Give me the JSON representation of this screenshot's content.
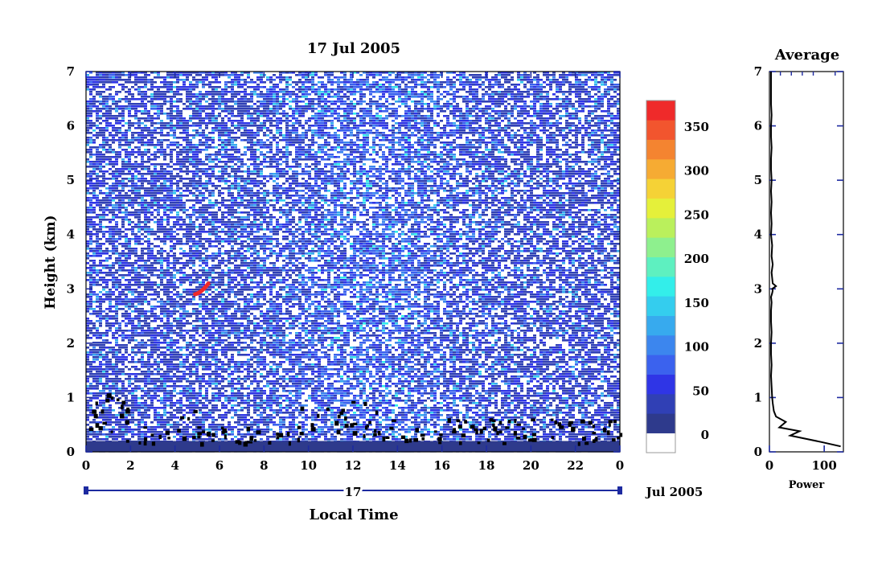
{
  "chart_data": [
    {
      "type": "heatmap",
      "title": "17 Jul 2005",
      "xlabel": "Local Time",
      "ylabel": "Height (km)",
      "x_ticks": [
        "0",
        "2",
        "4",
        "6",
        "8",
        "10",
        "12",
        "14",
        "16",
        "18",
        "20",
        "22",
        "0"
      ],
      "y_ticks": [
        "0",
        "1",
        "2",
        "3",
        "4",
        "5",
        "6",
        "7"
      ],
      "xlim": [
        0,
        24
      ],
      "ylim": [
        0,
        7
      ],
      "date_bar_label": "17",
      "date_suffix": "Jul 2005",
      "colorbar": {
        "ticks": [
          "0",
          "50",
          "100",
          "150",
          "200",
          "250",
          "300",
          "350"
        ],
        "range": [
          -20,
          380
        ],
        "colors": [
          "#ffffff",
          "#2e3a8c",
          "#3040b5",
          "#2f35e6",
          "#3b62ee",
          "#3c86ee",
          "#37aaee",
          "#34cdee",
          "#33eeea",
          "#5ef0c0",
          "#8ef08e",
          "#baf05c",
          "#e5f03a",
          "#f5d236",
          "#f6ab33",
          "#f48430",
          "#f2552e",
          "#ef2a2a"
        ]
      },
      "features": [
        {
          "name": "surface layer",
          "x": [
            0,
            24
          ],
          "height_km": [
            0,
            0.2
          ],
          "level": 20
        },
        {
          "name": "elevated echo",
          "x": [
            4.9,
            5.5
          ],
          "height_km": [
            2.9,
            3.1
          ],
          "level": 360
        }
      ]
    },
    {
      "type": "line",
      "title": "Average",
      "xlabel": "Power",
      "x_ticks": [
        "0",
        "100"
      ],
      "y_ticks": [
        "0",
        "1",
        "2",
        "3",
        "4",
        "5",
        "6",
        "7"
      ],
      "xlim": [
        0,
        135
      ],
      "ylim": [
        0,
        7
      ],
      "series": [
        {
          "x": [
            130,
            95,
            38,
            55,
            18,
            30,
            12,
            8,
            6,
            5,
            4,
            3,
            4,
            3,
            3,
            4,
            3,
            3,
            4,
            3,
            5,
            6,
            5,
            12,
            6,
            5,
            4,
            6,
            4,
            5,
            3,
            4,
            3,
            4,
            3,
            4,
            3,
            3,
            4,
            3,
            3,
            4,
            3,
            3,
            3,
            3,
            3
          ],
          "y": [
            0.1,
            0.18,
            0.3,
            0.38,
            0.45,
            0.55,
            0.65,
            0.75,
            0.9,
            1.0,
            1.2,
            1.4,
            1.6,
            1.8,
            2.0,
            2.2,
            2.4,
            2.6,
            2.75,
            2.85,
            2.92,
            2.97,
            3.0,
            3.05,
            3.1,
            3.2,
            3.3,
            3.45,
            3.6,
            3.8,
            4.0,
            4.2,
            4.4,
            4.6,
            4.8,
            5.0,
            5.2,
            5.4,
            5.6,
            5.8,
            6.0,
            6.2,
            6.4,
            6.6,
            6.8,
            6.95,
            7.0
          ]
        }
      ]
    }
  ]
}
